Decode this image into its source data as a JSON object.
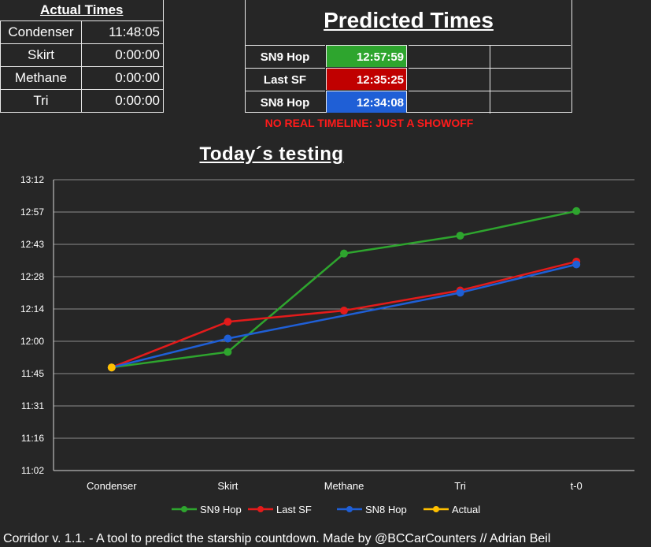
{
  "actual": {
    "title": "Actual Times",
    "rows": [
      {
        "label": "Condenser",
        "value": "11:48:05"
      },
      {
        "label": "Skirt",
        "value": "0:00:00"
      },
      {
        "label": "Methane",
        "value": "0:00:00"
      },
      {
        "label": "Tri",
        "value": "0:00:00"
      }
    ]
  },
  "predicted": {
    "title": "Predicted Times",
    "rows": [
      {
        "label": "SN9 Hop",
        "value": "12:57:59",
        "color": "#2ea52e"
      },
      {
        "label": "Last SF",
        "value": "12:35:25",
        "color": "#c00000"
      },
      {
        "label": "SN8 Hop",
        "value": "12:34:08",
        "color": "#1f5fd6"
      }
    ],
    "notice": "NO REAL TIMELINE: JUST A SHOWOFF"
  },
  "chart_data": {
    "type": "line",
    "title": "Today´s testing",
    "categories": [
      "Condenser",
      "Skirt",
      "Methane",
      "Tri",
      "t-0"
    ],
    "y_ticks": [
      "11:02",
      "11:16",
      "11:31",
      "11:45",
      "12:00",
      "12:14",
      "12:28",
      "12:43",
      "12:57",
      "13:12"
    ],
    "ylim": [
      "11:02",
      "13:12"
    ],
    "grid": true,
    "legend_position": "bottom",
    "series": [
      {
        "name": "SN9 Hop",
        "color": "#2ea52e",
        "values": [
          "11:48:05",
          "11:55:00",
          "12:39:00",
          "12:47:00",
          "12:57:59"
        ]
      },
      {
        "name": "Last SF",
        "color": "#e31b1b",
        "values": [
          "11:48:05",
          "12:08:30",
          "12:13:30",
          "12:22:30",
          "12:35:25"
        ]
      },
      {
        "name": "SN8 Hop",
        "color": "#1f5fd6",
        "values": [
          "11:48:05",
          "12:01:00",
          null,
          "12:21:30",
          "12:34:08"
        ]
      },
      {
        "name": "Actual",
        "color": "#ffc000",
        "values": [
          "11:48:05",
          null,
          null,
          null,
          null
        ]
      }
    ]
  },
  "footer": "Corridor v. 1.1.  - A tool to predict the starship countdown. Made by @BCCarCounters // Adrian Beil"
}
